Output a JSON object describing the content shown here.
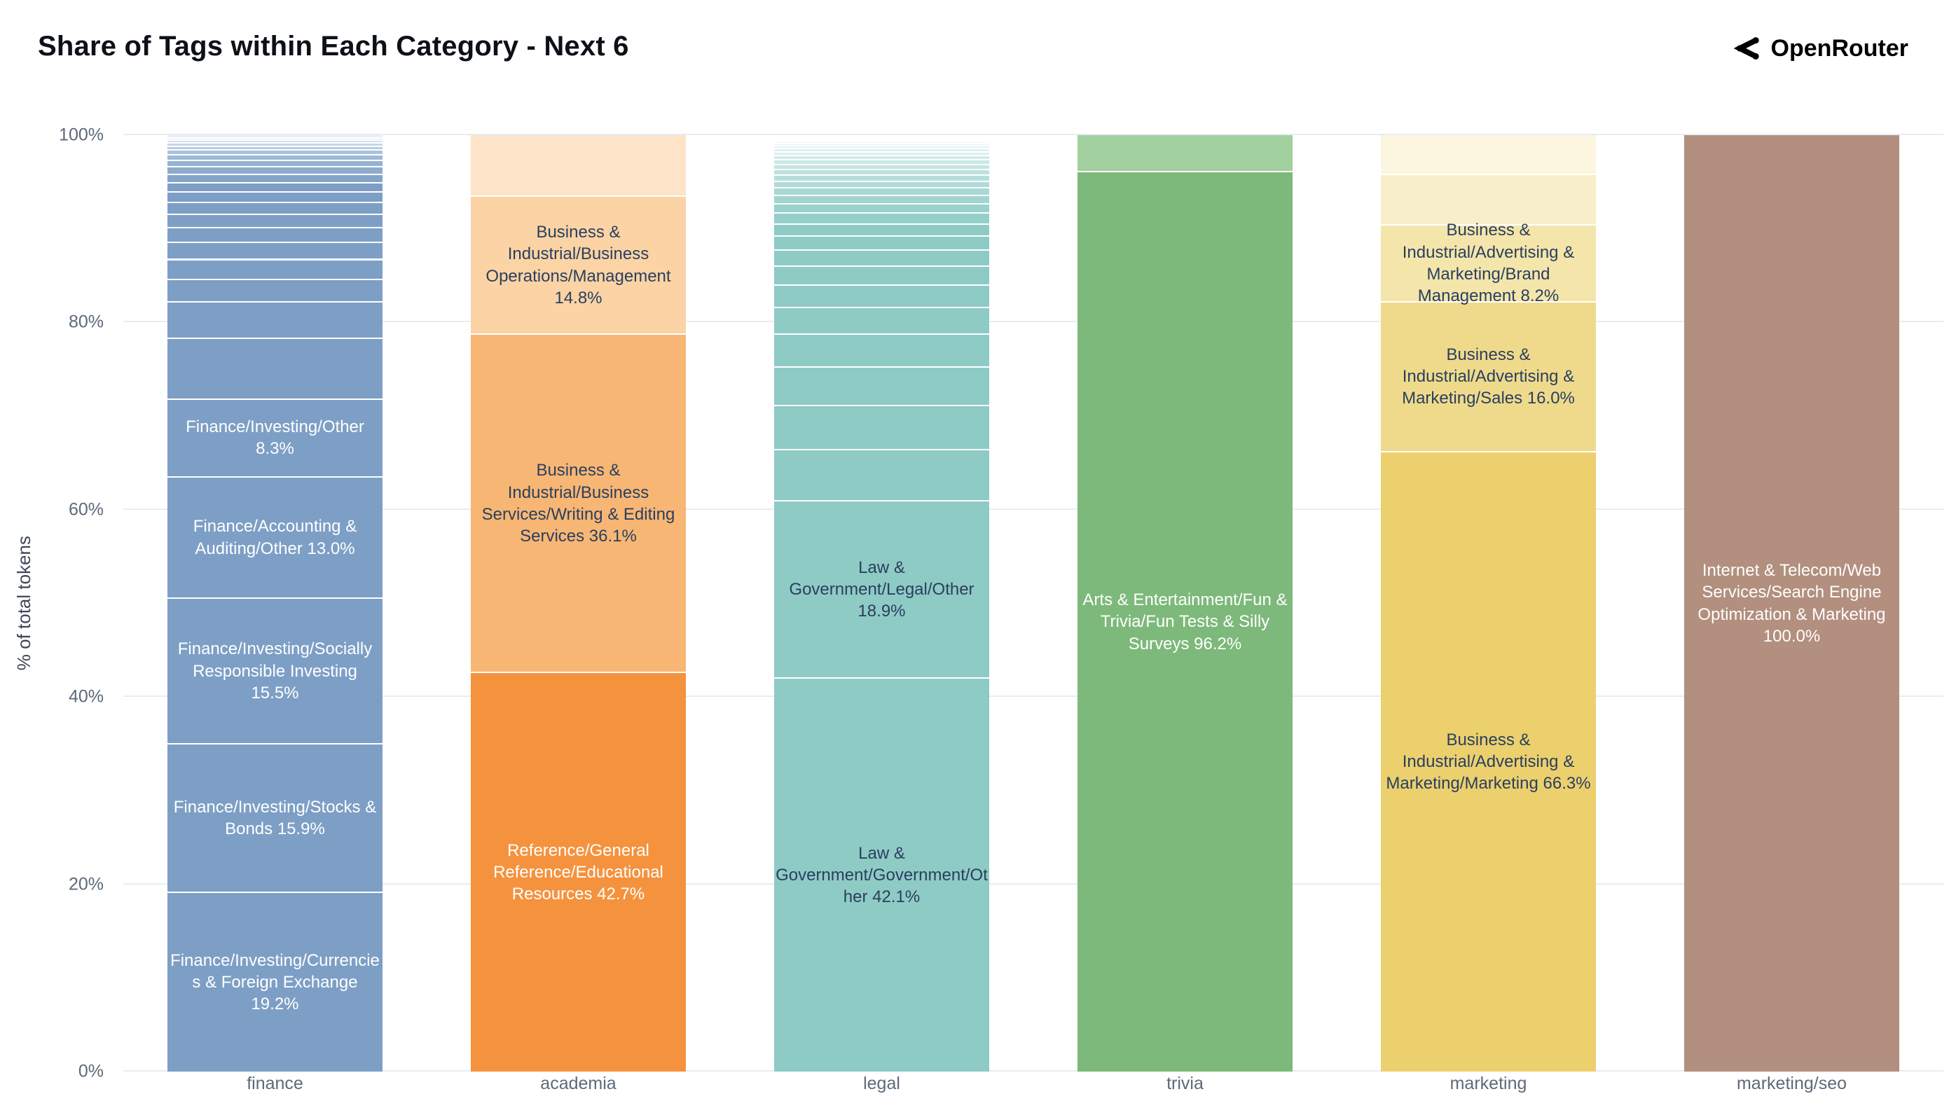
{
  "title": "Share of Tags within Each Category - Next 6",
  "brand": {
    "name": "OpenRouter",
    "icon": "openrouter-mark",
    "color": "#000000"
  },
  "chart_data": {
    "type": "bar",
    "stacked": true,
    "title": "Share of Tags within Each Category - Next 6",
    "xlabel": "",
    "ylabel": "% of total tokens",
    "ylim": [
      0,
      100
    ],
    "grid": true,
    "grid_color": "#e8ecf1",
    "axis_text_color": "#5d6a7a",
    "ytick_values": [
      0,
      20,
      40,
      60,
      80,
      100
    ],
    "ytick_labels": [
      "0%",
      "20%",
      "40%",
      "60%",
      "80%",
      "100%"
    ],
    "categories": [
      "finance",
      "academia",
      "legal",
      "trivia",
      "marketing",
      "marketing/seo"
    ],
    "bars": [
      {
        "category": "finance",
        "segments": [
          {
            "label": "Finance/Investing/Currencies & Foreign Exchange 19.2%",
            "value": 19.2,
            "color": "#7d9fc6",
            "text": "#ffffff"
          },
          {
            "label": "Finance/Investing/Stocks & Bonds 15.9%",
            "value": 15.9,
            "color": "#7d9fc6",
            "text": "#ffffff"
          },
          {
            "label": "Finance/Investing/Socially Responsible Investing 15.5%",
            "value": 15.5,
            "color": "#7d9fc6",
            "text": "#ffffff"
          },
          {
            "label": "Finance/Accounting & Auditing/Other 13.0%",
            "value": 13.0,
            "color": "#7d9fc6",
            "text": "#ffffff"
          },
          {
            "label": "Finance/Investing/Other 8.3%",
            "value": 8.3,
            "color": "#7d9fc6",
            "text": "#ffffff"
          },
          {
            "label": "",
            "value": 6.5,
            "color": "#7d9fc6"
          },
          {
            "label": "",
            "value": 3.9,
            "color": "#7d9fc6"
          },
          {
            "label": "",
            "value": 2.4,
            "color": "#7d9fc6"
          },
          {
            "label": "",
            "value": 2.1,
            "color": "#7d9fc6"
          },
          {
            "label": "",
            "value": 1.8,
            "color": "#7d9fc6"
          },
          {
            "label": "",
            "value": 1.6,
            "color": "#7d9fc6"
          },
          {
            "label": "",
            "value": 1.4,
            "color": "#7d9fc6"
          },
          {
            "label": "",
            "value": 1.3,
            "color": "#7d9fc6"
          },
          {
            "label": "",
            "value": 1.1,
            "color": "#7d9fc6"
          },
          {
            "label": "",
            "value": 1.0,
            "color": "#7d9fc6"
          },
          {
            "label": "",
            "value": 0.9,
            "color": "#84a5ca"
          },
          {
            "label": "",
            "value": 0.8,
            "color": "#8cabce"
          },
          {
            "label": "",
            "value": 0.7,
            "color": "#95b2d3"
          },
          {
            "label": "",
            "value": 0.6,
            "color": "#9fb9d7"
          },
          {
            "label": "",
            "value": 0.5,
            "color": "#abc2dc"
          },
          {
            "label": "",
            "value": 0.4,
            "color": "#b8cce2"
          },
          {
            "label": "",
            "value": 0.35,
            "color": "#c5d5e8"
          },
          {
            "label": "",
            "value": 0.3,
            "color": "#d2dfee"
          },
          {
            "label": "",
            "value": 0.25,
            "color": "#dee8f3"
          },
          {
            "label": "",
            "value": 0.2,
            "color": "#eaf0f8"
          }
        ]
      },
      {
        "category": "academia",
        "segments": [
          {
            "label": "Reference/General Reference/Educational Resources 42.7%",
            "value": 42.7,
            "color": "#f5923e",
            "text": "#ffffff"
          },
          {
            "label": "Business & Industrial/Business Services/Writing & Editing Services 36.1%",
            "value": 36.1,
            "color": "#f8b674",
            "text": "#2a3f5f"
          },
          {
            "label": "Business & Industrial/Business Operations/Management 14.8%",
            "value": 14.8,
            "color": "#fbd3a4",
            "text": "#2a3f5f"
          },
          {
            "label": "",
            "value": 6.4,
            "color": "#fde4c8"
          }
        ]
      },
      {
        "category": "legal",
        "segments": [
          {
            "label": "Law & Government/Government/Other 42.1%",
            "value": 42.1,
            "color": "#8ecbc5",
            "text": "#2a3f5f"
          },
          {
            "label": "Law & Government/Legal/Other 18.9%",
            "value": 18.9,
            "color": "#8ecbc5",
            "text": "#2a3f5f"
          },
          {
            "label": "",
            "value": 5.5,
            "color": "#8ecbc5"
          },
          {
            "label": "",
            "value": 4.7,
            "color": "#8ecbc5"
          },
          {
            "label": "",
            "value": 4.1,
            "color": "#8ecbc5"
          },
          {
            "label": "",
            "value": 3.5,
            "color": "#8ecbc5"
          },
          {
            "label": "",
            "value": 2.9,
            "color": "#8ecbc5"
          },
          {
            "label": "",
            "value": 2.4,
            "color": "#8ecbc5"
          },
          {
            "label": "",
            "value": 2.0,
            "color": "#8ecbc5"
          },
          {
            "label": "",
            "value": 1.7,
            "color": "#8ecbc5"
          },
          {
            "label": "",
            "value": 1.5,
            "color": "#8ecbc5"
          },
          {
            "label": "",
            "value": 1.3,
            "color": "#8ecbc5"
          },
          {
            "label": "",
            "value": 1.15,
            "color": "#94cfc9"
          },
          {
            "label": "",
            "value": 1.0,
            "color": "#9ad2cd"
          },
          {
            "label": "",
            "value": 0.9,
            "color": "#a1d5d0"
          },
          {
            "label": "",
            "value": 0.8,
            "color": "#a8d9d4"
          },
          {
            "label": "",
            "value": 0.7,
            "color": "#afdcd8"
          },
          {
            "label": "",
            "value": 0.65,
            "color": "#b6dfdb"
          },
          {
            "label": "",
            "value": 0.6,
            "color": "#bde2de"
          },
          {
            "label": "",
            "value": 0.55,
            "color": "#c4e5e2"
          },
          {
            "label": "",
            "value": 0.5,
            "color": "#cbe8e5"
          },
          {
            "label": "",
            "value": 0.45,
            "color": "#d2ebe9"
          },
          {
            "label": "",
            "value": 0.4,
            "color": "#d9eeec"
          },
          {
            "label": "",
            "value": 0.35,
            "color": "#dff1ef"
          },
          {
            "label": "",
            "value": 0.3,
            "color": "#e5f3f2"
          },
          {
            "label": "",
            "value": 0.25,
            "color": "#eaf5f4"
          },
          {
            "label": "",
            "value": 0.2,
            "color": "#eff7f6"
          },
          {
            "label": "",
            "value": 0.18,
            "color": "#f3f9f8"
          },
          {
            "label": "",
            "value": 0.15,
            "color": "#f6fbfa"
          },
          {
            "label": "",
            "value": 0.12,
            "color": "#f9fcfb"
          },
          {
            "label": "",
            "value": 0.1,
            "color": "#fbfdfd"
          }
        ]
      },
      {
        "category": "trivia",
        "segments": [
          {
            "label": "Arts & Entertainment/Fun & Trivia/Fun Tests & Silly Surveys 96.2%",
            "value": 96.2,
            "color": "#7db97a",
            "text": "#ffffff"
          },
          {
            "label": "",
            "value": 3.8,
            "color": "#a2cf9e"
          }
        ]
      },
      {
        "category": "marketing",
        "segments": [
          {
            "label": "Business & Industrial/Advertising & Marketing/Marketing 66.3%",
            "value": 66.3,
            "color": "#ecd06e",
            "text": "#2a3f5f"
          },
          {
            "label": "Business & Industrial/Advertising & Marketing/Sales 16.0%",
            "value": 16.0,
            "color": "#efda8c",
            "text": "#2a3f5f"
          },
          {
            "label": "Business & Industrial/Advertising & Marketing/Brand Management 8.2%",
            "value": 8.2,
            "color": "#f4e5ab",
            "text": "#2a3f5f"
          },
          {
            "label": "",
            "value": 5.4,
            "color": "#f8eec9"
          },
          {
            "label": "",
            "value": 4.1,
            "color": "#fcf6e0"
          }
        ]
      },
      {
        "category": "marketing/seo",
        "segments": [
          {
            "label": "Internet & Telecom/Web Services/Search Engine Optimization & Marketing 100.0%",
            "value": 100.0,
            "color": "#b28f7e",
            "text": "#ffffff"
          }
        ]
      }
    ]
  }
}
